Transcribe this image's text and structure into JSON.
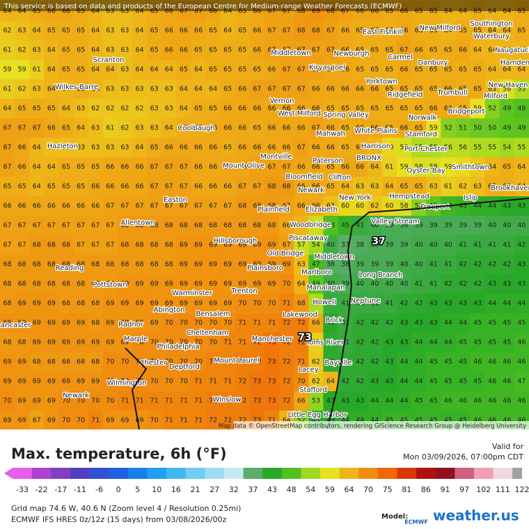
{
  "header": {
    "notice": "This service is based on data and products of the European Centre for Medium-range Weather Forecasts (ECMWF)"
  },
  "map": {
    "grid": [
      [
        64,
        64,
        65,
        66,
        66,
        65,
        64,
        63,
        63,
        64,
        65,
        66,
        67,
        67,
        66,
        64,
        65,
        66,
        67,
        67,
        68,
        69,
        68,
        67,
        66,
        66,
        65,
        66,
        65,
        65,
        64,
        64,
        65,
        64,
        64,
        65
      ],
      [
        62,
        63,
        64,
        65,
        65,
        65,
        64,
        63,
        63,
        64,
        65,
        66,
        66,
        66,
        65,
        64,
        65,
        66,
        67,
        67,
        68,
        68,
        67,
        66,
        65,
        65,
        65,
        66,
        65,
        65,
        64,
        65,
        65,
        64,
        64,
        65
      ],
      [
        61,
        62,
        63,
        64,
        65,
        65,
        64,
        63,
        63,
        64,
        65,
        66,
        66,
        65,
        65,
        65,
        65,
        66,
        67,
        67,
        67,
        67,
        67,
        66,
        65,
        65,
        65,
        67,
        66,
        65,
        65,
        66,
        64,
        64,
        64,
        64
      ],
      [
        59,
        59,
        61,
        64,
        65,
        65,
        64,
        64,
        63,
        64,
        64,
        64,
        65,
        64,
        65,
        65,
        65,
        65,
        66,
        67,
        67,
        67,
        66,
        66,
        65,
        65,
        65,
        66,
        65,
        65,
        65,
        65,
        65,
        64,
        64,
        64
      ],
      [
        61,
        62,
        63,
        64,
        64,
        65,
        64,
        63,
        63,
        63,
        63,
        63,
        64,
        64,
        64,
        65,
        66,
        67,
        67,
        67,
        67,
        66,
        66,
        66,
        66,
        66,
        65,
        65,
        65,
        65,
        66,
        65,
        65,
        63,
        58,
        55
      ],
      [
        64,
        65,
        65,
        65,
        64,
        63,
        62,
        62,
        62,
        62,
        63,
        63,
        64,
        65,
        65,
        66,
        66,
        66,
        66,
        66,
        66,
        66,
        65,
        65,
        65,
        65,
        65,
        65,
        65,
        66,
        66,
        65,
        59,
        52,
        49,
        48
      ],
      [
        67,
        67,
        67,
        66,
        65,
        64,
        63,
        61,
        62,
        63,
        63,
        64,
        65,
        65,
        66,
        66,
        66,
        65,
        66,
        66,
        66,
        67,
        66,
        65,
        66,
        66,
        65,
        66,
        65,
        59,
        52,
        51,
        50,
        50,
        49,
        49
      ],
      [
        67,
        66,
        64,
        63,
        63,
        63,
        63,
        63,
        63,
        64,
        65,
        66,
        66,
        66,
        66,
        65,
        66,
        66,
        66,
        66,
        67,
        66,
        66,
        65,
        65,
        64,
        60,
        58,
        55,
        55,
        56,
        56,
        55,
        55,
        54,
        55
      ],
      [
        67,
        66,
        64,
        64,
        65,
        65,
        65,
        66,
        66,
        66,
        67,
        67,
        67,
        66,
        66,
        66,
        66,
        67,
        67,
        67,
        66,
        66,
        65,
        66,
        66,
        64,
        61,
        59,
        58,
        58,
        59,
        60,
        62,
        64,
        65,
        64
      ],
      [
        65,
        65,
        64,
        65,
        65,
        65,
        66,
        66,
        66,
        66,
        67,
        67,
        67,
        66,
        66,
        66,
        67,
        67,
        68,
        68,
        66,
        66,
        65,
        64,
        63,
        63,
        64,
        65,
        65,
        63,
        61,
        62,
        63,
        65,
        65,
        64
      ],
      [
        66,
        66,
        66,
        66,
        66,
        66,
        66,
        67,
        67,
        67,
        67,
        67,
        67,
        67,
        67,
        67,
        68,
        68,
        68,
        67,
        66,
        66,
        63,
        60,
        60,
        62,
        60,
        58,
        52,
        49,
        46,
        45,
        44,
        44,
        43,
        43
      ],
      [
        67,
        67,
        67,
        67,
        67,
        67,
        67,
        67,
        68,
        68,
        68,
        68,
        68,
        68,
        68,
        68,
        68,
        68,
        68,
        66,
        64,
        57,
        48,
        45,
        41,
        40,
        39,
        39,
        39,
        39,
        39,
        39,
        39,
        40,
        40,
        40
      ],
      [
        67,
        67,
        68,
        68,
        68,
        67,
        67,
        67,
        68,
        68,
        68,
        68,
        69,
        69,
        69,
        69,
        69,
        69,
        69,
        67,
        57,
        54,
        40,
        37,
        38,
        39,
        39,
        39,
        40,
        40,
        40,
        41,
        41,
        41,
        41,
        42
      ],
      [
        68,
        68,
        68,
        68,
        68,
        68,
        68,
        68,
        68,
        68,
        68,
        68,
        69,
        69,
        69,
        69,
        69,
        69,
        69,
        69,
        63,
        47,
        38,
        38,
        39,
        39,
        39,
        40,
        40,
        41,
        41,
        42,
        42,
        42,
        42,
        43
      ],
      [
        68,
        68,
        68,
        68,
        68,
        68,
        68,
        68,
        69,
        69,
        69,
        69,
        69,
        69,
        69,
        69,
        69,
        69,
        69,
        70,
        64,
        49,
        40,
        39,
        40,
        40,
        40,
        40,
        41,
        41,
        42,
        42,
        42,
        43,
        43,
        43
      ],
      [
        68,
        69,
        69,
        69,
        68,
        68,
        68,
        69,
        69,
        69,
        69,
        69,
        69,
        69,
        69,
        69,
        70,
        70,
        70,
        71,
        68,
        55,
        41,
        41,
        41,
        41,
        41,
        42,
        42,
        43,
        43,
        43,
        43,
        44,
        44,
        44
      ],
      [
        69,
        69,
        69,
        69,
        69,
        69,
        68,
        69,
        69,
        69,
        69,
        70,
        70,
        70,
        70,
        70,
        71,
        71,
        71,
        72,
        72,
        66,
        43,
        41,
        42,
        42,
        42,
        43,
        43,
        43,
        44,
        44,
        45,
        45,
        45,
        45
      ],
      [
        68,
        68,
        69,
        69,
        69,
        69,
        69,
        69,
        69,
        70,
        70,
        70,
        70,
        70,
        70,
        71,
        71,
        72,
        73,
        72,
        72,
        61,
        42,
        41,
        42,
        42,
        43,
        43,
        44,
        44,
        44,
        45,
        45,
        45,
        45,
        46
      ],
      [
        69,
        69,
        68,
        68,
        68,
        68,
        68,
        70,
        70,
        70,
        70,
        70,
        70,
        70,
        71,
        71,
        72,
        72,
        73,
        72,
        71,
        62,
        42,
        42,
        42,
        42,
        43,
        44,
        44,
        45,
        45,
        45,
        46,
        46,
        46,
        46
      ],
      [
        69,
        69,
        69,
        69,
        69,
        69,
        69,
        70,
        70,
        70,
        70,
        70,
        70,
        71,
        71,
        71,
        72,
        73,
        73,
        72,
        70,
        62,
        64,
        42,
        42,
        43,
        43,
        44,
        44,
        45,
        45,
        45,
        45,
        46,
        46,
        47
      ],
      [
        70,
        69,
        69,
        69,
        70,
        70,
        70,
        70,
        71,
        71,
        71,
        71,
        71,
        71,
        72,
        72,
        72,
        73,
        73,
        72,
        66,
        53,
        43,
        43,
        43,
        44,
        44,
        44,
        45,
        45,
        46,
        46,
        46,
        46,
        46,
        46
      ],
      [
        69,
        69,
        67,
        69,
        70,
        70,
        71,
        69,
        69,
        69,
        70,
        71,
        71,
        71,
        72,
        72,
        72,
        73,
        71,
        64,
        52,
        43,
        43,
        44,
        44,
        44,
        45,
        45,
        45,
        45,
        45,
        45,
        46,
        46,
        46,
        46
      ]
    ],
    "places": [
      "East Fishkill",
      "New Milford",
      "Southington",
      "Waterbury",
      "Naugatuck",
      "Scranton",
      "Middletown",
      "Newburgh",
      "Carmel",
      "Danbury",
      "Hamden",
      "Kiryas Joel",
      "Wilkes-Barre",
      "Yorktown",
      "Ridgefield",
      "Trumbull",
      "New Haven",
      "Milford",
      "Vernon",
      "West Milford",
      "Spring Valley",
      "Norwalk",
      "Bridgeport",
      "Mahwah",
      "White Plains",
      "Coolbaugh",
      "Hazleton",
      "Harrison",
      "Port Chester",
      "Stamford",
      "Montville",
      "Mount Olive",
      "Paterson",
      "BRONX",
      "Oyster Bay",
      "Smithtown",
      "Bloomfield",
      "Clifton",
      "Newark",
      "New York",
      "Hempstead",
      "Brookhaven",
      "Easton",
      "Plainfield",
      "Elizabeth",
      "Freeport",
      "Islip",
      "Allentown",
      "Woodbridge",
      "Valley Stream",
      "Hillsborough",
      "Piscataway",
      "Old Bridge",
      "Middletown",
      "Reading",
      "Plainsboro",
      "Marlboro",
      "Long Branch",
      "Pottstown",
      "Manalapan",
      "Trenton",
      "Warminster",
      "Howell",
      "Neptune",
      "Abington",
      "Bensalem",
      "Lakewood",
      "Radnor",
      "Cheltenham",
      "Brick",
      "Lancaster",
      "Manchester",
      "Toms River",
      "Marple",
      "Philadelphia",
      "Bayville",
      "Chester",
      "Deptford",
      "Mount Laurel",
      "Lacey",
      "Wilmington",
      "Stafford",
      "Newark",
      "Winslow",
      "Little Egg Harbor"
    ],
    "markers": [
      73,
      37
    ],
    "attribution": "Map data © OpenStreetMap contributors, rendering GIScience Research Group @ Heidelberg University"
  },
  "legend": {
    "ticks": [
      -33,
      -22,
      -17,
      -11,
      -6,
      0,
      5,
      10,
      16,
      21,
      27,
      32,
      37,
      43,
      48,
      54,
      59,
      64,
      70,
      75,
      81,
      86,
      91,
      97,
      102,
      111,
      122
    ],
    "colors": [
      "#e65fe6",
      "#b040d0",
      "#8040c0",
      "#5040c0",
      "#3050d0",
      "#2060e0",
      "#1880e8",
      "#20a0f0",
      "#40b8f0",
      "#70ccf0",
      "#a0dcf0",
      "#c8e8f0",
      "#5aae6a",
      "#28a828",
      "#50c020",
      "#a0d820",
      "#e8e020",
      "#eeb418",
      "#f08c10",
      "#f06808",
      "#d83808",
      "#b01010",
      "#901020",
      "#d06080",
      "#f0a0b0",
      "#f0d8e0",
      "#a0a0a0"
    ]
  },
  "footer": {
    "title": "Max. temperature, 6h (°F)",
    "valid_label": "Valid for",
    "valid_time": "Mon 03/09/2026, 07:00pm CDT",
    "grid_info": "Grid map 74.6 W, 40.6 N (Zoom level 4 / Resolution 0.25mi)",
    "model_info": "ECMWF IFS HRES 0z/12z (15 days) from 03/08/2026/00z",
    "model_label": "Model:",
    "model_name": "ECMWF",
    "brand": "weather.us"
  }
}
